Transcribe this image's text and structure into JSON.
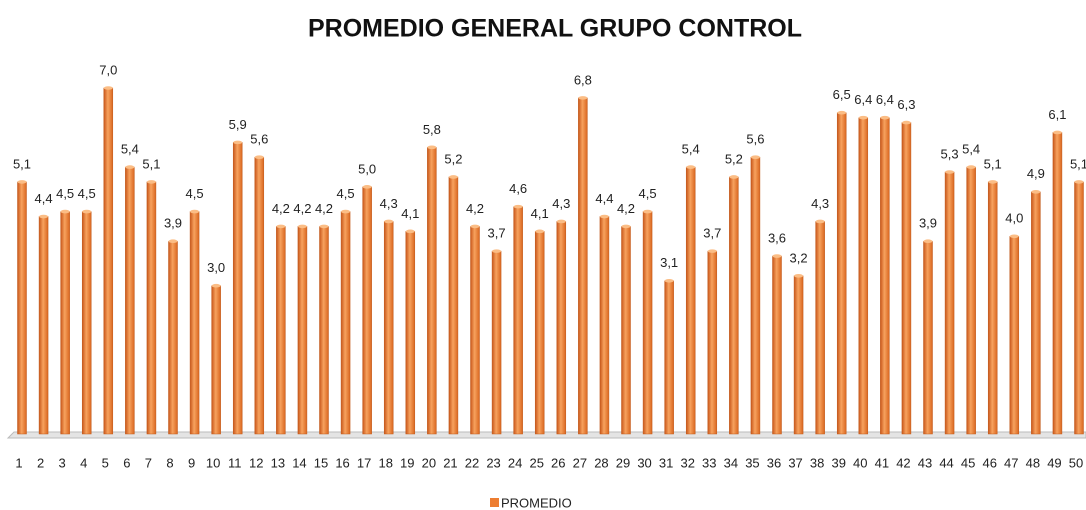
{
  "chart_data": {
    "type": "bar",
    "title": "PROMEDIO GENERAL GRUPO CONTROL",
    "categories": [
      "1",
      "2",
      "3",
      "4",
      "5",
      "6",
      "7",
      "8",
      "9",
      "10",
      "11",
      "12",
      "13",
      "14",
      "15",
      "16",
      "17",
      "18",
      "19",
      "20",
      "21",
      "22",
      "23",
      "24",
      "25",
      "26",
      "27",
      "28",
      "29",
      "30",
      "31",
      "32",
      "33",
      "34",
      "35",
      "36",
      "37",
      "38",
      "39",
      "40",
      "41",
      "42",
      "43",
      "44",
      "45",
      "46",
      "47",
      "48",
      "49",
      "50"
    ],
    "series": [
      {
        "name": "PROMEDIO",
        "color": "#ED7D31",
        "values": [
          5.1,
          4.4,
          4.5,
          4.5,
          7.0,
          5.4,
          5.1,
          3.9,
          4.5,
          3.0,
          5.9,
          5.6,
          4.2,
          4.2,
          4.2,
          4.5,
          5.0,
          4.3,
          4.1,
          5.8,
          5.2,
          4.2,
          3.7,
          4.6,
          4.1,
          4.3,
          6.8,
          4.4,
          4.2,
          4.5,
          3.1,
          5.4,
          3.7,
          5.2,
          5.6,
          3.6,
          3.2,
          4.3,
          6.5,
          6.4,
          6.4,
          6.3,
          3.9,
          5.3,
          5.4,
          5.1,
          4.0,
          4.9,
          6.1,
          5.1
        ],
        "value_labels": [
          "5,1",
          "4,4",
          "4,5",
          "4,5",
          "7,0",
          "5,4",
          "5,1",
          "3,9",
          "4,5",
          "3,0",
          "5,9",
          "5,6",
          "4,2",
          "4,2",
          "4,2",
          "4,5",
          "5,0",
          "4,3",
          "4,1",
          "5,8",
          "5,2",
          "4,2",
          "3,7",
          "4,6",
          "4,1",
          "4,3",
          "6,8",
          "4,4",
          "4,2",
          "4,5",
          "3,1",
          "5,4",
          "3,7",
          "5,2",
          "5,6",
          "3,6",
          "3,2",
          "4,3",
          "6,5",
          "6,4",
          "6,4",
          "6,3",
          "3,9",
          "5,3",
          "5,4",
          "5,1",
          "4,0",
          "4,9",
          "6,1",
          "5,1"
        ]
      }
    ],
    "legend": "bottom"
  }
}
